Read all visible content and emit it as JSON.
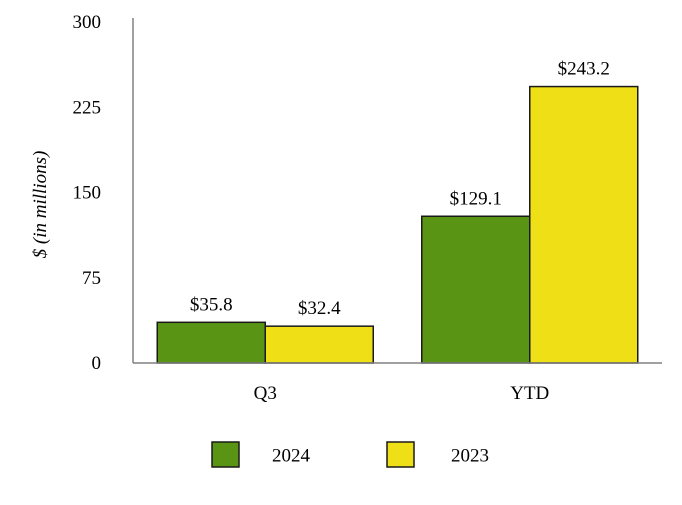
{
  "chart_data": {
    "type": "bar",
    "categories": [
      "Q3",
      "YTD"
    ],
    "series": [
      {
        "name": "2024",
        "values": [
          35.8,
          129.1
        ],
        "labels": [
          "$35.8",
          "$129.1"
        ],
        "color": "#5a9414"
      },
      {
        "name": "2023",
        "values": [
          32.4,
          243.2
        ],
        "labels": [
          "$32.4",
          "$243.2"
        ],
        "color": "#eedf16"
      }
    ],
    "title": "",
    "xlabel": "",
    "ylabel": "$ (in millions)",
    "ylim": [
      0,
      300
    ],
    "yticks": [
      0,
      75,
      150,
      225,
      300
    ],
    "ytick_labels": [
      "0",
      "75",
      "150",
      "225",
      "300"
    ],
    "grid": false,
    "legend_position": "bottom-center",
    "bar_outline_color": "#1a1a1a"
  }
}
